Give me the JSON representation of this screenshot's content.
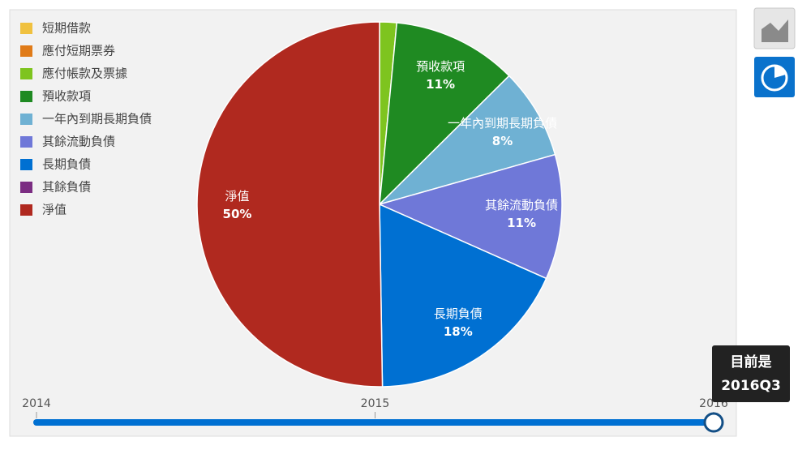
{
  "chart_data": {
    "type": "pie",
    "categories": [
      "短期借款",
      "應付短期票券",
      "應付帳款及票據",
      "預收款項",
      "一年內到期長期負債",
      "其餘流動負債",
      "長期負債",
      "其餘負債",
      "淨值"
    ],
    "values": [
      0,
      0,
      1.5,
      11,
      8,
      11,
      18,
      0,
      50
    ],
    "value_labels": [
      null,
      null,
      null,
      "11%",
      "8%",
      "11%",
      "18%",
      null,
      "50%"
    ],
    "colors": [
      "#f0c13f",
      "#e07b18",
      "#7ec41f",
      "#1f8a22",
      "#6fb1d3",
      "#6f78d8",
      "#0070d2",
      "#7b2d82",
      "#b0291f"
    ],
    "legend": "top-left"
  },
  "slider": {
    "xlim": [
      2014,
      2016
    ],
    "xticks": [
      2014,
      2015,
      2016
    ],
    "current_label": "目前是",
    "current": "2016Q3"
  }
}
